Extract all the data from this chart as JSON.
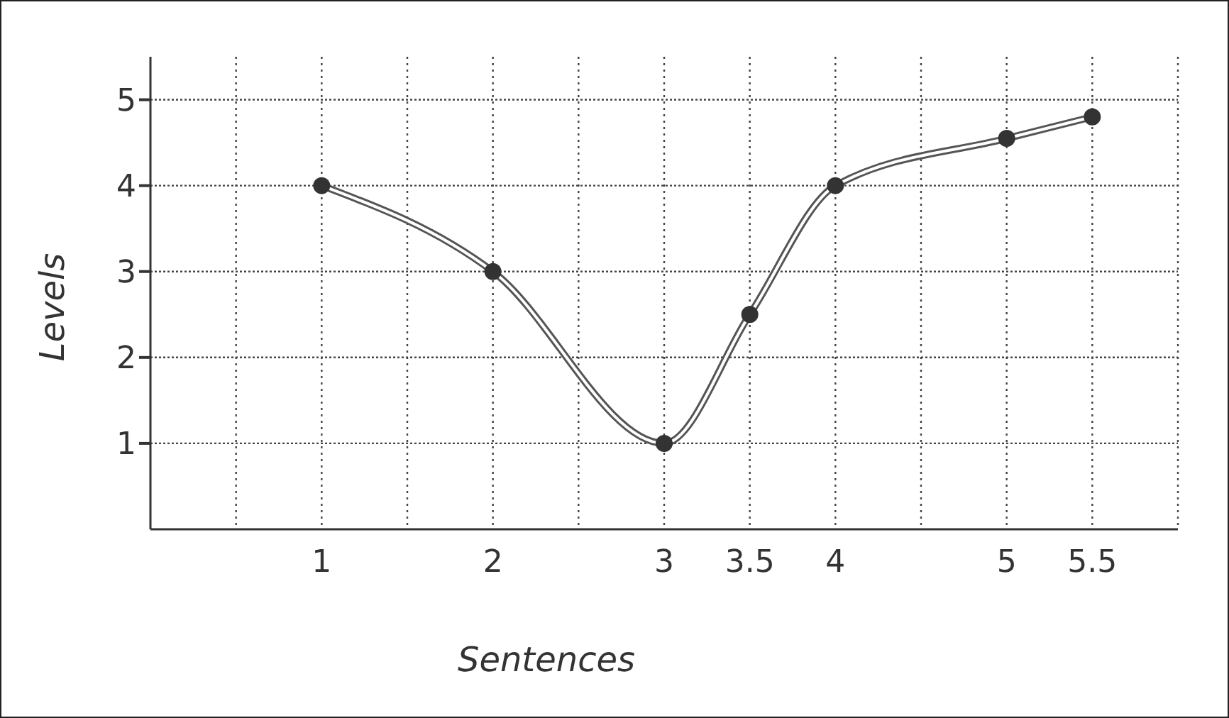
{
  "chart_data": {
    "type": "line",
    "xlabel": "Sentences",
    "ylabel": "Levels",
    "x": [
      1,
      2,
      3,
      3.5,
      4,
      5,
      5.5
    ],
    "series": [
      {
        "color": "#555555",
        "values": [
          4,
          3,
          1,
          2.5,
          4,
          4.55,
          4.8
        ]
      }
    ],
    "xlim": [
      0,
      6
    ],
    "xticks": [
      {
        "value": 0.5,
        "label": null
      },
      1,
      {
        "value": 1.5,
        "label": null
      },
      2,
      {
        "value": 2.5,
        "label": null
      },
      3,
      3.5,
      4,
      {
        "value": 4.5,
        "label": null
      },
      5,
      5.5,
      {
        "value": 6,
        "label": null
      }
    ],
    "ylim": [
      0,
      5.5
    ],
    "yticks": [
      1,
      2,
      3,
      4,
      5
    ],
    "grid": true,
    "marker": "circle",
    "line_style": "solid"
  }
}
